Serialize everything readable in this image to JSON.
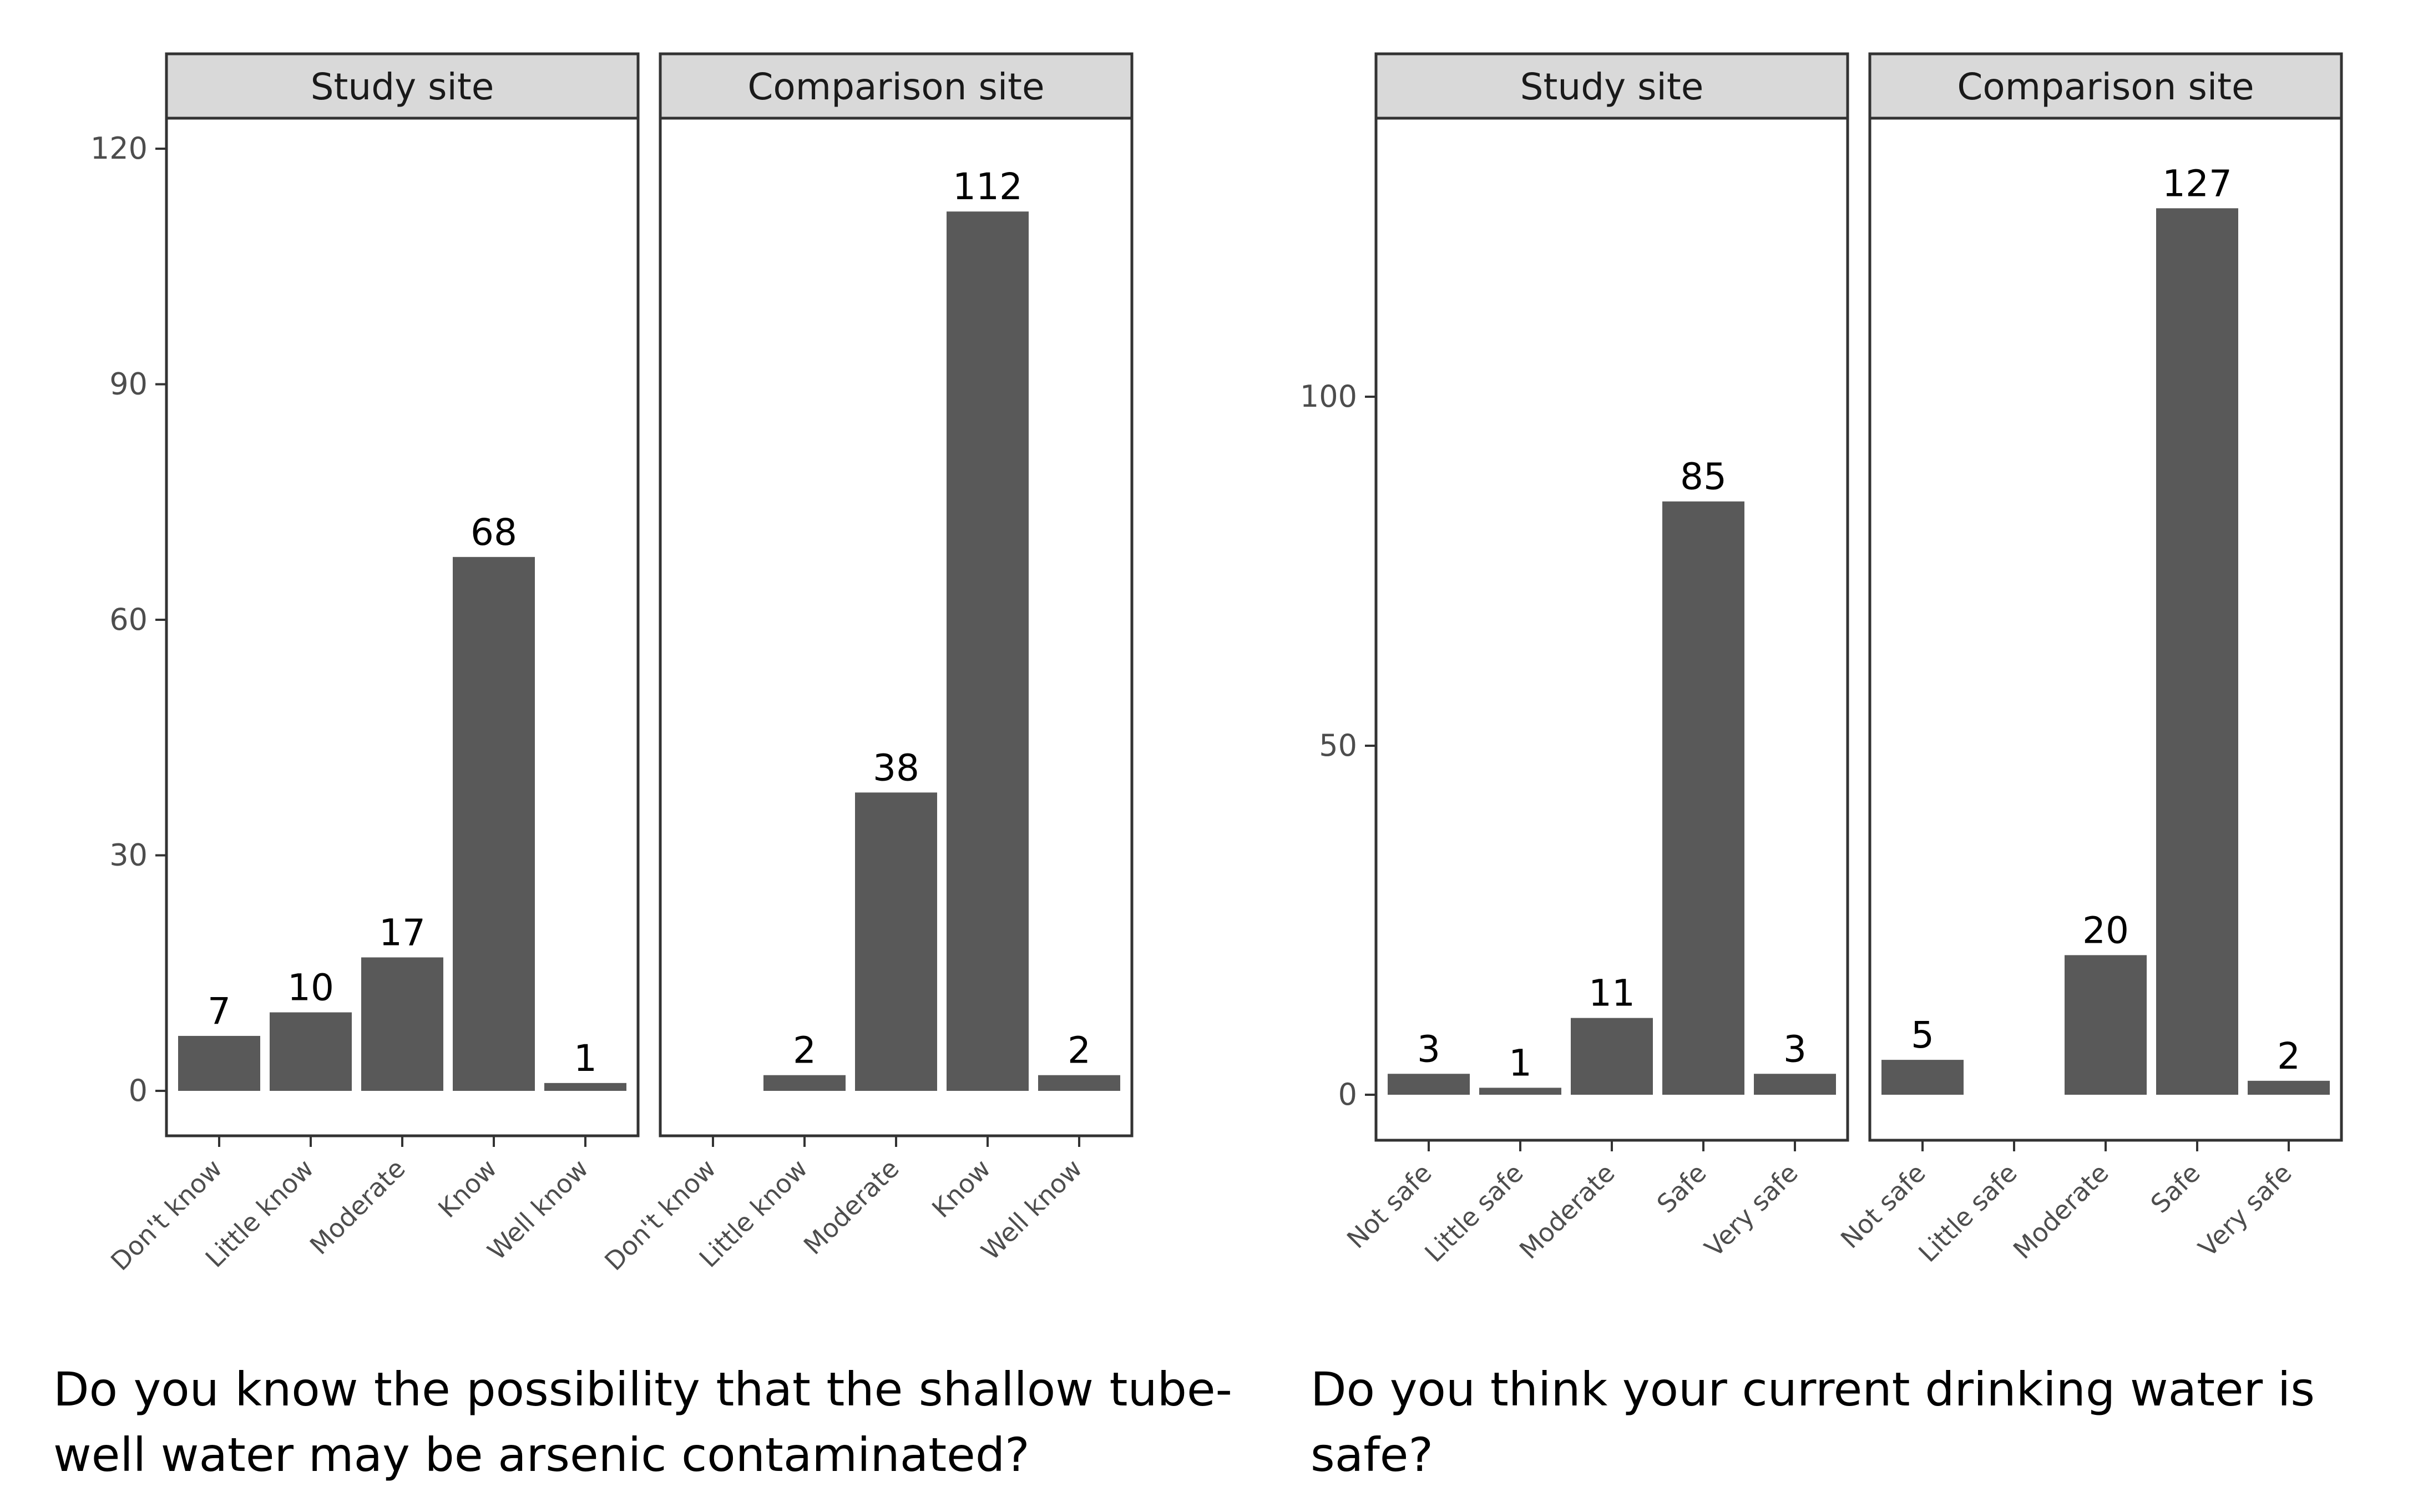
{
  "colors": {
    "bar": "#595959",
    "strip_fill": "#d9d9d9",
    "panel_border": "#333333",
    "tick_text": "#4d4d4d"
  },
  "chart_data": [
    {
      "type": "bar",
      "facet_by": "site",
      "caption": "Do you know the possibility that the shallow tube-well water may be arsenic contaminated?",
      "categories": [
        "Don't know",
        "Little know",
        "Moderate",
        "Know",
        "Well know"
      ],
      "ylim": [
        0,
        125
      ],
      "yticks": [
        0,
        30,
        60,
        90,
        120
      ],
      "grid": false,
      "facets": [
        {
          "name": "Study site",
          "values": [
            7,
            10,
            17,
            68,
            1
          ]
        },
        {
          "name": "Comparison site",
          "values": [
            null,
            2,
            38,
            112,
            2
          ]
        }
      ]
    },
    {
      "type": "bar",
      "facet_by": "site",
      "caption": "Do you think your current drinking water is safe?",
      "categories": [
        "Not safe",
        "Little safe",
        "Moderate",
        "Safe",
        "Very safe"
      ],
      "ylim": [
        0,
        140
      ],
      "yticks": [
        0,
        50,
        100
      ],
      "grid": false,
      "facets": [
        {
          "name": "Study site",
          "values": [
            3,
            1,
            11,
            85,
            3
          ]
        },
        {
          "name": "Comparison site",
          "values": [
            5,
            null,
            20,
            127,
            2
          ]
        }
      ]
    }
  ]
}
